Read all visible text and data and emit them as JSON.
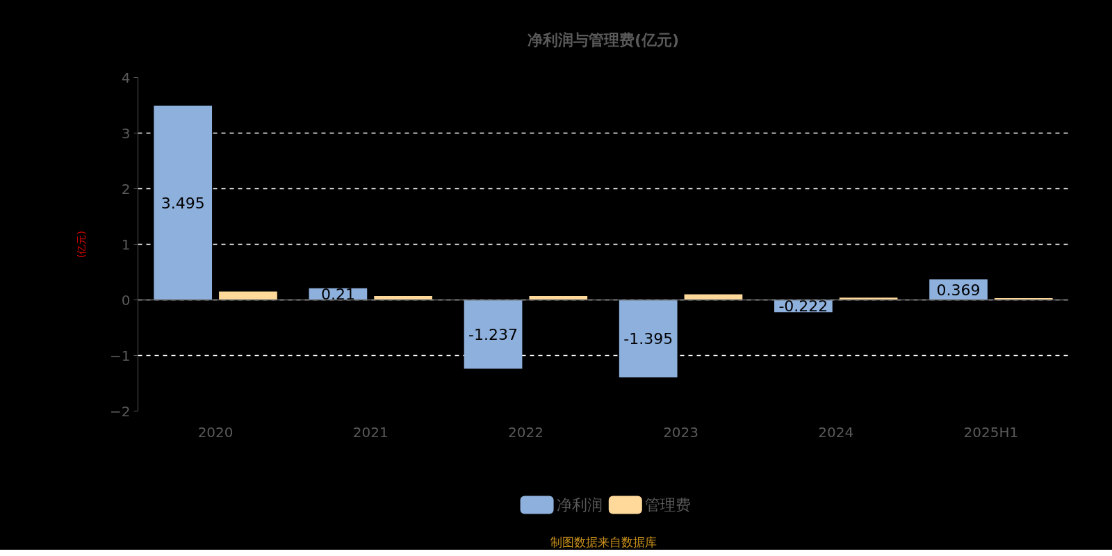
{
  "chart_data": {
    "type": "bar",
    "title": "净利润与管理费(亿元)",
    "ylabel": "(亿元)",
    "categories": [
      "2020",
      "2021",
      "2022",
      "2023",
      "2024",
      "2025H1"
    ],
    "series": [
      {
        "name": "净利润",
        "color": "#8eb0dd",
        "values": [
          3.495,
          0.21,
          -1.237,
          -1.395,
          -0.222,
          0.369
        ],
        "value_labels": [
          "3.495",
          "0.21",
          "-1.237",
          "-1.395",
          "-0.222",
          "0.369"
        ]
      },
      {
        "name": "管理费",
        "color": "#ffd99a",
        "values": [
          0.15,
          0.07,
          0.07,
          0.1,
          0.04,
          0.03
        ]
      }
    ],
    "ylim": [
      -2,
      4
    ],
    "yticks": [
      -2,
      -1,
      0,
      1,
      2,
      3,
      4
    ],
    "grid": "y",
    "legend": "bottom",
    "annotations": [
      "制图数据来自数据库"
    ]
  }
}
